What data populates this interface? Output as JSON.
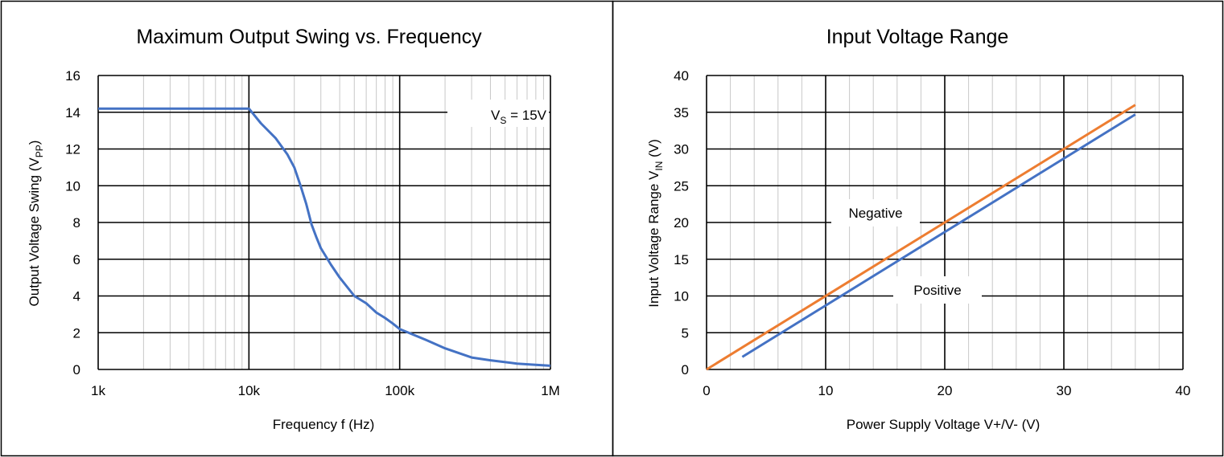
{
  "chart_data": [
    {
      "type": "line",
      "title": "Maximum Output Swing vs. Frequency",
      "xlabel": "Frequency f (Hz)",
      "ylabel": "Output Voltage Swing (V",
      "ylabel_sub": "PP",
      "ylabel_suffix": ")",
      "x_scale": "log",
      "xlim": [
        1000,
        1000000
      ],
      "ylim": [
        0,
        16
      ],
      "x_ticks": [
        {
          "value": 1000,
          "label": "1k"
        },
        {
          "value": 10000,
          "label": "10k"
        },
        {
          "value": 100000,
          "label": "100k"
        },
        {
          "value": 1000000,
          "label": "1M"
        }
      ],
      "y_ticks": [
        0,
        2,
        4,
        6,
        8,
        10,
        12,
        14,
        16
      ],
      "grid": true,
      "annotation": {
        "prefix": "V",
        "sub": "S",
        "suffix": " = 15V",
        "placement": "top-right"
      },
      "series": [
        {
          "color": "#4472c4",
          "x": [
            1000,
            10000,
            12000,
            15000,
            18000,
            20000,
            22000,
            24000,
            26000,
            28000,
            30000,
            35000,
            40000,
            50000,
            60000,
            70000,
            80000,
            90000,
            100000,
            150000,
            200000,
            300000,
            400000,
            600000,
            800000,
            1000000
          ],
          "y": [
            14.2,
            14.2,
            13.4,
            12.6,
            11.7,
            11.0,
            10.0,
            9.0,
            7.9,
            7.2,
            6.6,
            5.7,
            5.0,
            4.0,
            3.6,
            3.1,
            2.8,
            2.5,
            2.2,
            1.6,
            1.15,
            0.65,
            0.5,
            0.32,
            0.25,
            0.2
          ]
        }
      ]
    },
    {
      "type": "line",
      "title": "Input Voltage Range",
      "xlabel": "Power Supply Voltage V+/V- (V)",
      "ylabel": "Input Voltage Range V",
      "ylabel_sub": "IN",
      "ylabel_suffix": " (V)",
      "xlim": [
        0,
        40
      ],
      "ylim": [
        0,
        40
      ],
      "x_ticks": [
        0,
        10,
        20,
        30,
        40
      ],
      "y_ticks": [
        0,
        5,
        10,
        15,
        20,
        25,
        30,
        35,
        40
      ],
      "grid": true,
      "series": [
        {
          "name": "Negative",
          "color": "#ed7d31",
          "x": [
            0,
            36
          ],
          "y": [
            0,
            36
          ]
        },
        {
          "name": "Positive",
          "color": "#4472c4",
          "x": [
            3,
            36
          ],
          "y": [
            1.7,
            34.7
          ]
        }
      ]
    }
  ]
}
